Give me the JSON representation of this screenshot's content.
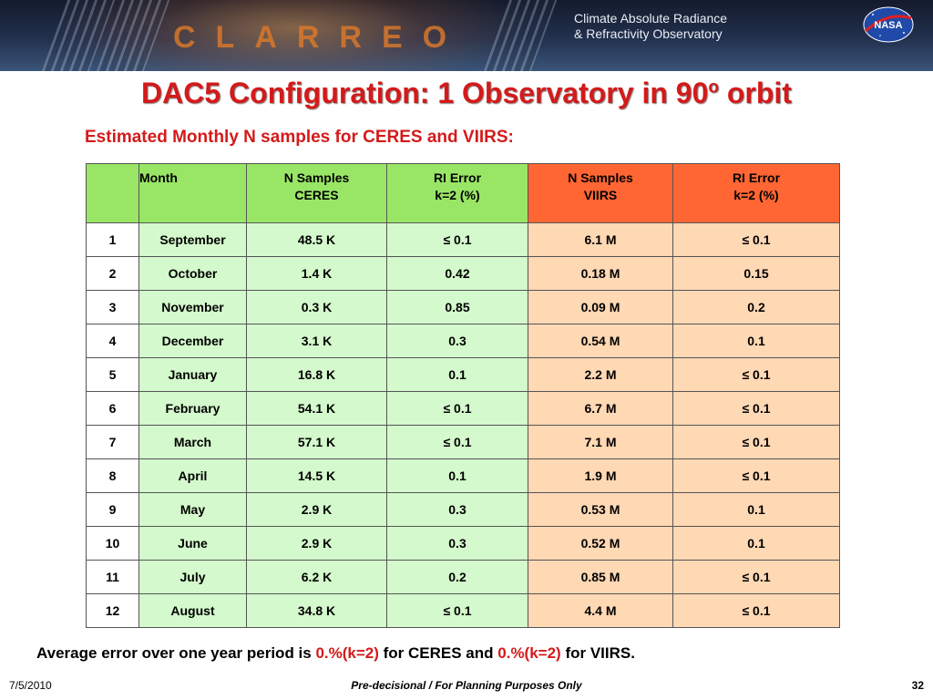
{
  "header": {
    "logo_word": "CLARREO",
    "tagline_line1": "Climate Absolute Radiance",
    "tagline_line2": "& Refractivity Observatory",
    "agency_logo": "NASA"
  },
  "title": {
    "main": "DAC5 Configuration: 1 Observatory in 90",
    "superscript": "o",
    "suffix": " orbit"
  },
  "subtitle": "Estimated Monthly N samples for CERES and VIIRS:",
  "table": {
    "headers": {
      "index": "",
      "month": "Month",
      "ceres_samples_l1": "N Samples",
      "ceres_samples_l2": "CERES",
      "ceres_error_l1": "RI Error",
      "ceres_error_l2": "k=2 (%)",
      "viirs_samples_l1": "N Samples",
      "viirs_samples_l2": "VIIRS",
      "viirs_error_l1": "RI Error",
      "viirs_error_l2": "k=2 (%)"
    },
    "rows": [
      {
        "n": "1",
        "month": "September",
        "ceres_n": "48.5 K",
        "ceres_err": "≤ 0.1",
        "viirs_n": "6.1 M",
        "viirs_err": "≤ 0.1"
      },
      {
        "n": "2",
        "month": "October",
        "ceres_n": "1.4 K",
        "ceres_err": "0.42",
        "viirs_n": "0.18 M",
        "viirs_err": "0.15"
      },
      {
        "n": "3",
        "month": "November",
        "ceres_n": "0.3 K",
        "ceres_err": "0.85",
        "viirs_n": "0.09 M",
        "viirs_err": "0.2"
      },
      {
        "n": "4",
        "month": "December",
        "ceres_n": "3.1 K",
        "ceres_err": "0.3",
        "viirs_n": "0.54 M",
        "viirs_err": "0.1"
      },
      {
        "n": "5",
        "month": "January",
        "ceres_n": "16.8 K",
        "ceres_err": "0.1",
        "viirs_n": "2.2 M",
        "viirs_err": "≤ 0.1"
      },
      {
        "n": "6",
        "month": "February",
        "ceres_n": "54.1 K",
        "ceres_err": "≤ 0.1",
        "viirs_n": "6.7 M",
        "viirs_err": "≤ 0.1"
      },
      {
        "n": "7",
        "month": "March",
        "ceres_n": "57.1 K",
        "ceres_err": "≤ 0.1",
        "viirs_n": "7.1 M",
        "viirs_err": "≤ 0.1"
      },
      {
        "n": "8",
        "month": "April",
        "ceres_n": "14.5 K",
        "ceres_err": "0.1",
        "viirs_n": "1.9 M",
        "viirs_err": "≤ 0.1"
      },
      {
        "n": "9",
        "month": "May",
        "ceres_n": "2.9 K",
        "ceres_err": "0.3",
        "viirs_n": "0.53 M",
        "viirs_err": "0.1"
      },
      {
        "n": "10",
        "month": "June",
        "ceres_n": "2.9 K",
        "ceres_err": "0.3",
        "viirs_n": "0.52 M",
        "viirs_err": "0.1"
      },
      {
        "n": "11",
        "month": "July",
        "ceres_n": "6.2 K",
        "ceres_err": "0.2",
        "viirs_n": "0.85 M",
        "viirs_err": "≤ 0.1"
      },
      {
        "n": "12",
        "month": "August",
        "ceres_n": "34.8 K",
        "ceres_err": "≤ 0.1",
        "viirs_n": "4.4 M",
        "viirs_err": "≤ 0.1"
      }
    ]
  },
  "footnote": {
    "part1": "Average error over one year period is ",
    "ceres_value": "0.%(k=2)",
    "part2": " for CERES and ",
    "viirs_value": "0.%(k=2)",
    "part3": " for VIIRS."
  },
  "footer": {
    "date": "7/5/2010",
    "center": "Pre-decisional / For Planning Purposes Only",
    "page": "32"
  },
  "colors": {
    "title_red": "#d41a1a",
    "ceres_header_green": "#99e666",
    "ceres_cell_green": "#d4f9cc",
    "viirs_header_orange": "#ff6633",
    "viirs_cell_peach": "#ffd8b4"
  }
}
